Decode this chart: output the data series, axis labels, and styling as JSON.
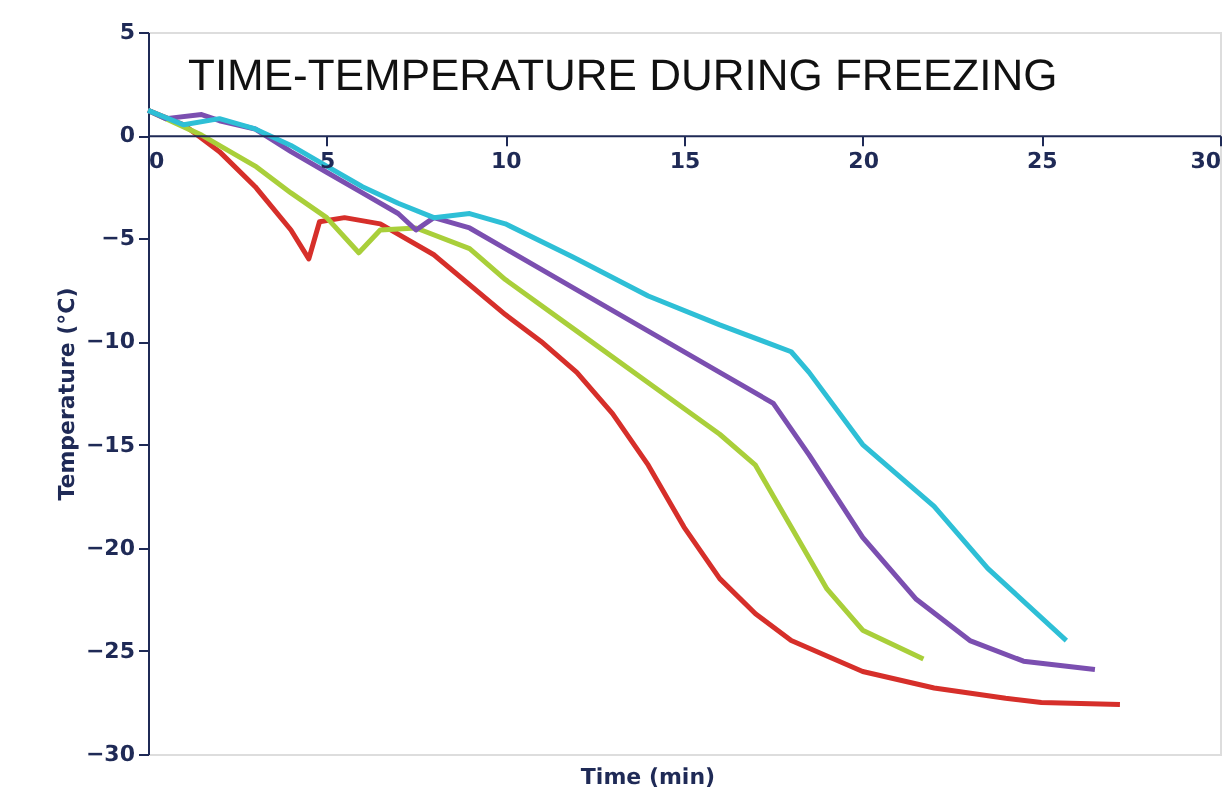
{
  "chart_data": {
    "type": "line",
    "title": "TIME-TEMPERATURE DURING FREEZING",
    "xlabel": "Time (min)",
    "ylabel": "Temperature (°C)",
    "xlim": [
      0,
      30
    ],
    "xticks": [
      0,
      5,
      10,
      15,
      20,
      25,
      30
    ],
    "ylim": [
      -30,
      5
    ],
    "yticks": [
      -30,
      -25,
      -20,
      -15,
      -10,
      -5,
      0,
      5
    ],
    "grid": false,
    "marker": "none",
    "line_style": "solid",
    "series": [
      {
        "color": "#d62f2a",
        "x": [
          0,
          1,
          2,
          3,
          4,
          4.5,
          4.8,
          5.5,
          6.5,
          8,
          10,
          11,
          12,
          13,
          14,
          15,
          16,
          17,
          18,
          20,
          22,
          24,
          25,
          27.2
        ],
        "values": [
          1.2,
          0.5,
          -0.8,
          -2.5,
          -4.6,
          -6,
          -4.2,
          -4,
          -4.3,
          -5.8,
          -8.7,
          -10,
          -11.5,
          -13.5,
          -16,
          -19,
          -21.5,
          -23.2,
          -24.5,
          -26,
          -26.8,
          -27.3,
          -27.5,
          -27.6
        ]
      },
      {
        "color": "#a9cf3a",
        "x": [
          0,
          1.5,
          3,
          4,
          5,
          5.9,
          6.5,
          7.5,
          9,
          10,
          12,
          14,
          16,
          17,
          18,
          19,
          20,
          21.7
        ],
        "values": [
          1.2,
          0,
          -1.5,
          -2.8,
          -4,
          -5.7,
          -4.6,
          -4.5,
          -5.5,
          -7,
          -9.5,
          -12,
          -14.5,
          -16,
          -19,
          -22,
          -24,
          -25.4
        ]
      },
      {
        "color": "#7b4fb0",
        "x": [
          0,
          0.5,
          1.5,
          2,
          3,
          4,
          5,
          6,
          7,
          7.5,
          8,
          9,
          10,
          12,
          14,
          16,
          17.5,
          18.5,
          20,
          21.5,
          23,
          24.5,
          26.5
        ],
        "values": [
          1.2,
          0.8,
          1,
          0.7,
          0.3,
          -0.8,
          -1.8,
          -2.8,
          -3.8,
          -4.6,
          -4,
          -4.5,
          -5.5,
          -7.5,
          -9.5,
          -11.5,
          -13,
          -15.5,
          -19.5,
          -22.5,
          -24.5,
          -25.5,
          -25.9
        ]
      },
      {
        "color": "#2ebfd6",
        "x": [
          0,
          1,
          2,
          3,
          4,
          5,
          6,
          7,
          8,
          9,
          10,
          12,
          14,
          16,
          18,
          18.5,
          20,
          22,
          23.5,
          25.7
        ],
        "values": [
          1.2,
          0.5,
          0.8,
          0.3,
          -0.5,
          -1.5,
          -2.5,
          -3.3,
          -4,
          -3.8,
          -4.3,
          -6,
          -7.8,
          -9.2,
          -10.5,
          -11.5,
          -15,
          -18,
          -21,
          -24.5
        ]
      }
    ]
  }
}
